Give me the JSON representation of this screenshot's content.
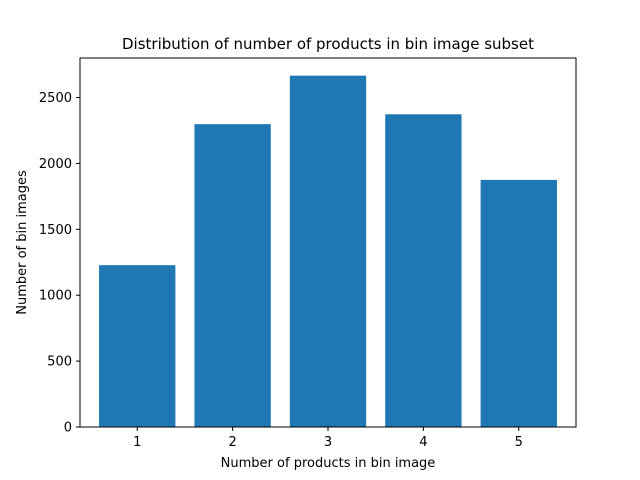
{
  "chart_data": {
    "type": "bar",
    "title": "Distribution of number of products in bin image subset",
    "xlabel": "Number of products in bin image",
    "ylabel": "Number of bin images",
    "categories": [
      "1",
      "2",
      "3",
      "4",
      "5"
    ],
    "values": [
      1228,
      2298,
      2666,
      2373,
      1875
    ],
    "ylim": [
      0,
      2800
    ],
    "yticks": [
      0,
      500,
      1000,
      1500,
      2000,
      2500
    ],
    "bar_color": "#1f77b4",
    "grid": false,
    "legend": "none"
  }
}
